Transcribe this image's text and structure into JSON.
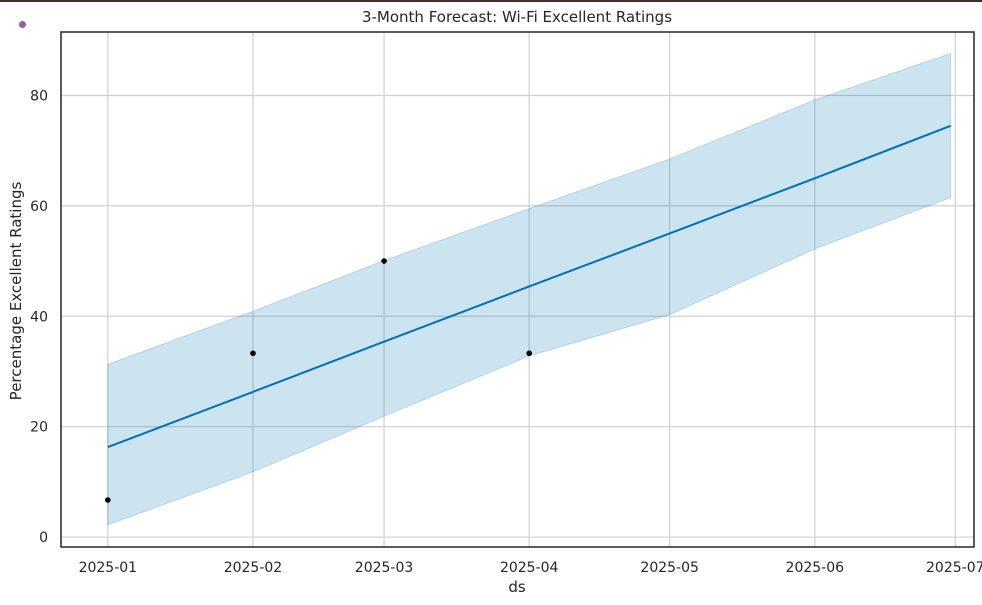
{
  "chart_data": {
    "type": "line",
    "title": "3-Month Forecast: Wi-Fi Excellent Ratings",
    "xlabel": "ds",
    "ylabel": "Percentage Excellent Ratings",
    "x_ticks": [
      "2025-01",
      "2025-02",
      "2025-03",
      "2025-04",
      "2025-05",
      "2025-06",
      "2025-07"
    ],
    "y_ticks": [
      0,
      20,
      40,
      60,
      80
    ],
    "xlim": [
      "2024-12-22",
      "2025-07-05"
    ],
    "ylim": [
      -1.8,
      91.5
    ],
    "grid": true,
    "colors": {
      "forecast_line": "#0072b2",
      "interval_fill": "#0072b2",
      "observed_points": "#000000",
      "grid": "#d0d0d0",
      "axes": "#262626"
    },
    "series": [
      {
        "kind": "observed",
        "x": [
          "2025-01-01",
          "2025-02-01",
          "2025-03-01",
          "2025-04-01"
        ],
        "y": [
          6.7,
          33.3,
          50.0,
          33.3
        ]
      },
      {
        "kind": "forecast",
        "x": [
          "2025-01-01",
          "2025-02-01",
          "2025-03-01",
          "2025-04-01",
          "2025-05-01",
          "2025-06-01",
          "2025-06-30"
        ],
        "y": [
          16.3,
          26.3,
          35.4,
          45.4,
          55.0,
          65.0,
          74.5
        ],
        "lower": [
          2.2,
          11.8,
          21.9,
          32.8,
          40.3,
          52.2,
          61.5
        ],
        "upper": [
          31.3,
          40.9,
          50.1,
          59.5,
          68.5,
          79.2,
          87.6
        ]
      }
    ]
  }
}
